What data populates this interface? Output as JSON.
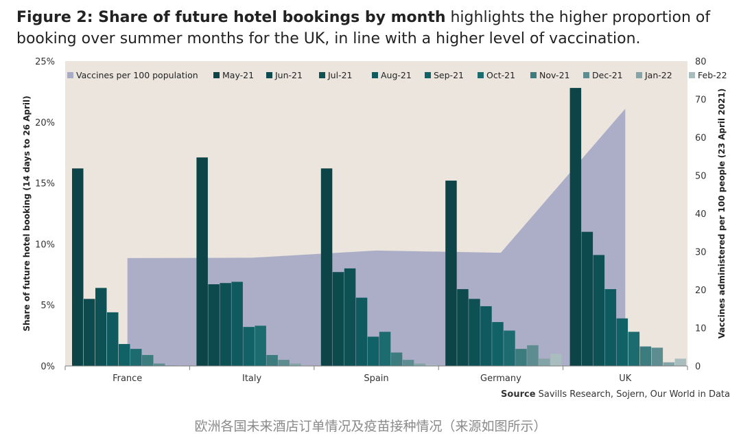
{
  "heading": {
    "bold": "Figure 2: Share of future hotel bookings by month",
    "rest": " highlights the higher proportion of booking over summer months for the UK, in line with a higher level of vaccination."
  },
  "source": {
    "label": "Source",
    "text": " Savills Research, Sojern, Our World in Data"
  },
  "caption": "欧洲各国未来酒店订单情况及疫苗接种情况（来源如图所示）",
  "chart_data": {
    "type": "bar",
    "categories": [
      "France",
      "Italy",
      "Spain",
      "Germany",
      "UK"
    ],
    "ylabel": "Share of future hotel booking (14 days to 26 April)",
    "ylabel_right": "Vaccines administered per 100 people (23 April 2021)",
    "ylim": [
      0,
      25
    ],
    "ylim_right": [
      0,
      80
    ],
    "y_ticks": [
      "0%",
      "5%",
      "10%",
      "15%",
      "20%",
      "25%"
    ],
    "y_ticks_right": [
      "0",
      "10",
      "20",
      "30",
      "40",
      "50",
      "60",
      "70",
      "80"
    ],
    "legend_position": "top",
    "area_series": {
      "name": "Vaccines per 100 population",
      "color": "#a8abc4",
      "points": [
        {
          "x": "France",
          "value": 28.3
        },
        {
          "x": "Italy",
          "value": 28.4
        },
        {
          "x": "Spain",
          "value": 30.3
        },
        {
          "x": "Germany",
          "value": 29.7
        },
        {
          "x": "UK",
          "value": 67.5
        }
      ]
    },
    "series": [
      {
        "name": "May-21",
        "color": "#0c4448",
        "values": [
          16.2,
          17.1,
          16.2,
          15.2,
          22.8
        ]
      },
      {
        "name": "Jun-21",
        "color": "#0c4a4e",
        "values": [
          5.5,
          6.7,
          7.7,
          6.3,
          11.0
        ]
      },
      {
        "name": "Jul-21",
        "color": "#0d5155",
        "values": [
          6.4,
          6.8,
          8.0,
          5.5,
          9.1
        ]
      },
      {
        "name": "Aug-21",
        "color": "#0e5a5e",
        "values": [
          4.4,
          6.9,
          5.6,
          4.9,
          6.3
        ]
      },
      {
        "name": "Sep-21",
        "color": "#106266",
        "values": [
          1.8,
          3.2,
          2.4,
          3.6,
          3.9
        ]
      },
      {
        "name": "Oct-21",
        "color": "#1c6b6f",
        "values": [
          1.4,
          3.3,
          2.8,
          2.9,
          2.8
        ]
      },
      {
        "name": "Nov-21",
        "color": "#3c7b7e",
        "values": [
          0.9,
          0.9,
          1.1,
          1.4,
          1.6
        ]
      },
      {
        "name": "Dec-21",
        "color": "#5d8d90",
        "values": [
          0.2,
          0.5,
          0.5,
          1.7,
          1.5
        ]
      },
      {
        "name": "Jan-22",
        "color": "#84a5a8",
        "values": [
          0.05,
          0.2,
          0.2,
          0.6,
          0.3
        ]
      },
      {
        "name": "Feb-22",
        "color": "#a9bdbe",
        "values": [
          0.0,
          0.05,
          0.1,
          1.0,
          0.6
        ]
      }
    ]
  }
}
